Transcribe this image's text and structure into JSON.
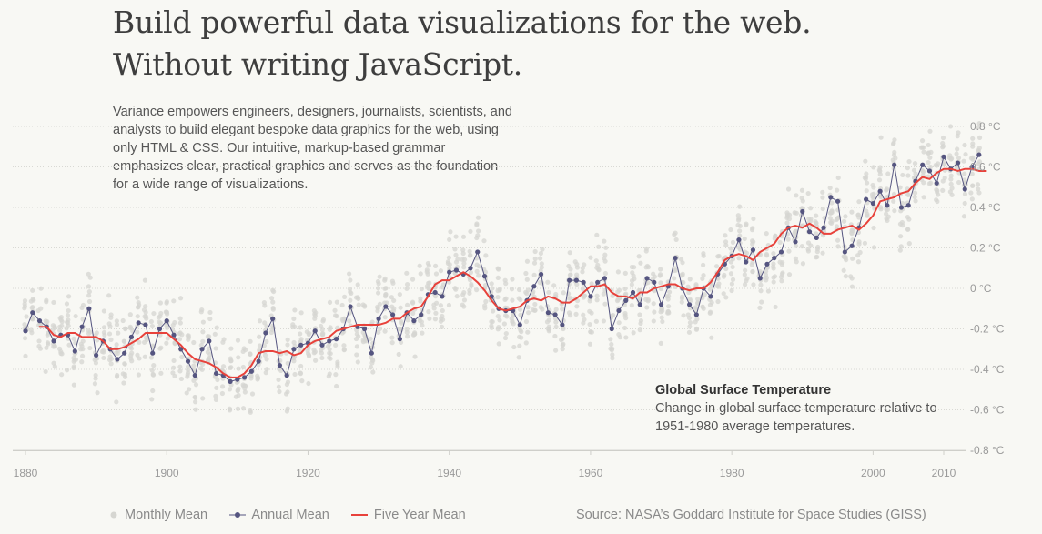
{
  "headline": {
    "line1": "Build powerful data visualizations for the web.",
    "line2": "Without writing JavaScript."
  },
  "intro": "Variance empowers engineers, designers, journalists, scientists, and analysts to build elegant bespoke data graphics for the web, using only HTML & CSS. Our intuitive, markup-based grammar emphasizes clear, practical graphics and serves as the foundation for a wide range of visualizations.",
  "caption": {
    "title": "Global Surface Temperature",
    "subtitle": "Change in global surface temperature relative to 1951-1980 average temperatures."
  },
  "legend": {
    "monthly": "Monthly Mean",
    "annual": "Annual Mean",
    "five_year": "Five Year Mean"
  },
  "source": "Source: NASA’s Goddard Institute for Space Studies (GISS)",
  "colors": {
    "monthly": "#d6d6d1",
    "annual": "#555580",
    "five_year": "#e8423b",
    "grid": "#d9d9d4",
    "axis_text": "#9a9a9a"
  },
  "chart_data": {
    "type": "line",
    "title": "Global Surface Temperature",
    "subtitle": "Change in global surface temperature relative to 1951-1980 average temperatures.",
    "xlim": [
      1878,
      2011
    ],
    "ylim": [
      -0.8,
      0.8
    ],
    "x_ticks": [
      {
        "value": 1880,
        "label": "1880"
      },
      {
        "value": 1900,
        "label": "1900"
      },
      {
        "value": 1920,
        "label": "1920"
      },
      {
        "value": 1940,
        "label": "1940"
      },
      {
        "value": 1960,
        "label": "1960"
      },
      {
        "value": 1980,
        "label": "1980"
      },
      {
        "value": 2000,
        "label": "2000"
      },
      {
        "value": 2010,
        "label": "2010"
      }
    ],
    "y_ticks": [
      {
        "value": 0.8,
        "label": "0.8 °C"
      },
      {
        "value": 0.6,
        "label": "0.6 °C"
      },
      {
        "value": 0.4,
        "label": "0.4 °C"
      },
      {
        "value": 0.2,
        "label": "0.2 °C"
      },
      {
        "value": 0,
        "label": "0 °C"
      },
      {
        "value": -0.2,
        "label": "-0.2 °C"
      },
      {
        "value": -0.4,
        "label": "-0.4 °C"
      },
      {
        "value": -0.6,
        "label": "-0.6 °C"
      },
      {
        "value": -0.8,
        "label": "-0.8 °C"
      }
    ],
    "legend_position": "bottom-left",
    "grid": true,
    "monthly_spread": 0.12,
    "series": [
      {
        "name": "Annual Mean",
        "x_start": 1880,
        "values": [
          -0.21,
          -0.12,
          -0.16,
          -0.19,
          -0.26,
          -0.23,
          -0.23,
          -0.31,
          -0.19,
          -0.1,
          -0.33,
          -0.26,
          -0.3,
          -0.35,
          -0.32,
          -0.24,
          -0.17,
          -0.18,
          -0.32,
          -0.2,
          -0.16,
          -0.23,
          -0.3,
          -0.36,
          -0.43,
          -0.3,
          -0.26,
          -0.42,
          -0.43,
          -0.46,
          -0.45,
          -0.44,
          -0.41,
          -0.36,
          -0.22,
          -0.15,
          -0.38,
          -0.43,
          -0.3,
          -0.28,
          -0.27,
          -0.21,
          -0.28,
          -0.26,
          -0.25,
          -0.2,
          -0.09,
          -0.19,
          -0.2,
          -0.32,
          -0.15,
          -0.09,
          -0.13,
          -0.25,
          -0.12,
          -0.16,
          -0.13,
          -0.03,
          -0.02,
          -0.04,
          0.08,
          0.09,
          0.07,
          0.1,
          0.18,
          0.06,
          -0.04,
          -0.1,
          -0.11,
          -0.11,
          -0.18,
          -0.06,
          0.01,
          0.07,
          -0.12,
          -0.13,
          -0.18,
          0.04,
          0.04,
          0.03,
          -0.04,
          0.03,
          0.05,
          -0.2,
          -0.11,
          -0.06,
          -0.02,
          -0.08,
          0.05,
          0.03,
          -0.08,
          0.01,
          0.15,
          0.0,
          -0.08,
          -0.13,
          0.0,
          -0.04,
          0.07,
          0.12,
          0.16,
          0.24,
          0.13,
          0.19,
          0.05,
          0.12,
          0.15,
          0.18,
          0.3,
          0.23,
          0.38,
          0.28,
          0.25,
          0.3,
          0.45,
          0.43,
          0.18,
          0.21,
          0.3,
          0.44,
          0.42,
          0.48,
          0.41,
          0.61,
          0.4,
          0.41,
          0.53,
          0.61,
          0.58,
          0.52,
          0.65,
          0.59,
          0.62,
          0.49,
          0.6,
          0.66
        ]
      },
      {
        "name": "Five Year Mean",
        "x_start": 1882,
        "values": [
          -0.19,
          -0.19,
          -0.23,
          -0.24,
          -0.22,
          -0.22,
          -0.24,
          -0.24,
          -0.24,
          -0.26,
          -0.3,
          -0.3,
          -0.29,
          -0.27,
          -0.25,
          -0.22,
          -0.22,
          -0.22,
          -0.22,
          -0.25,
          -0.28,
          -0.32,
          -0.35,
          -0.36,
          -0.37,
          -0.39,
          -0.42,
          -0.44,
          -0.44,
          -0.42,
          -0.38,
          -0.32,
          -0.31,
          -0.31,
          -0.32,
          -0.31,
          -0.33,
          -0.32,
          -0.28,
          -0.26,
          -0.25,
          -0.24,
          -0.21,
          -0.2,
          -0.19,
          -0.18,
          -0.18,
          -0.18,
          -0.18,
          -0.17,
          -0.15,
          -0.15,
          -0.12,
          -0.1,
          -0.09,
          -0.04,
          0.02,
          0.04,
          0.04,
          0.06,
          0.08,
          0.06,
          0.03,
          -0.01,
          -0.06,
          -0.1,
          -0.11,
          -0.1,
          -0.09,
          -0.06,
          -0.05,
          -0.06,
          -0.04,
          -0.05,
          -0.07,
          -0.07,
          -0.05,
          -0.02,
          0.01,
          0.01,
          0.02,
          -0.02,
          -0.04,
          -0.04,
          -0.05,
          -0.02,
          -0.02,
          0.0,
          0.01,
          0.02,
          0.02,
          0.0,
          -0.01,
          0.0,
          0.0,
          0.03,
          0.08,
          0.14,
          0.16,
          0.17,
          0.16,
          0.14,
          0.18,
          0.2,
          0.22,
          0.27,
          0.3,
          0.31,
          0.3,
          0.32,
          0.3,
          0.27,
          0.27,
          0.29,
          0.3,
          0.31,
          0.29,
          0.32,
          0.36,
          0.43,
          0.44,
          0.45,
          0.47,
          0.48,
          0.52,
          0.55,
          0.54,
          0.57,
          0.59,
          0.59,
          0.58,
          0.59,
          0.59,
          0.58,
          0.58
        ]
      }
    ]
  }
}
